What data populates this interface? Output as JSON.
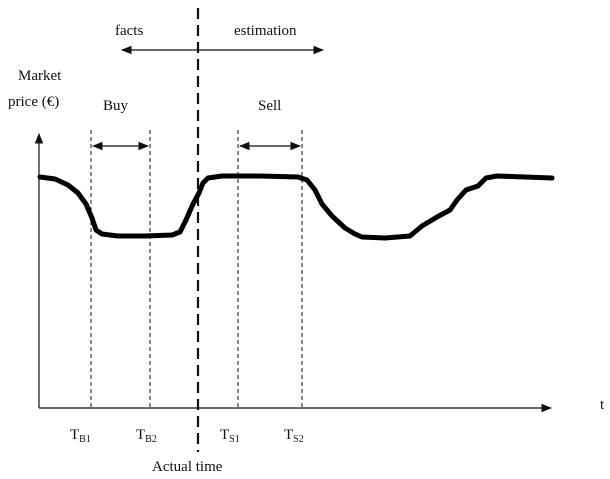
{
  "header": {
    "facts_label": "facts",
    "estimation_label": "estimation"
  },
  "axis": {
    "y_label_line1": "Market",
    "y_label_line2": "price (€)",
    "x_label": "t"
  },
  "windows": {
    "buy_label": "Buy",
    "sell_label": "Sell"
  },
  "ticks": [
    {
      "main": "T",
      "sub": "B1"
    },
    {
      "main": "T",
      "sub": "B2"
    },
    {
      "main": "T",
      "sub": "S1"
    },
    {
      "main": "T",
      "sub": "S2"
    }
  ],
  "actual_time_label": "Actual time",
  "colors": {
    "ink": "#111111",
    "curve": "#000000",
    "background": "#ffffff"
  }
}
